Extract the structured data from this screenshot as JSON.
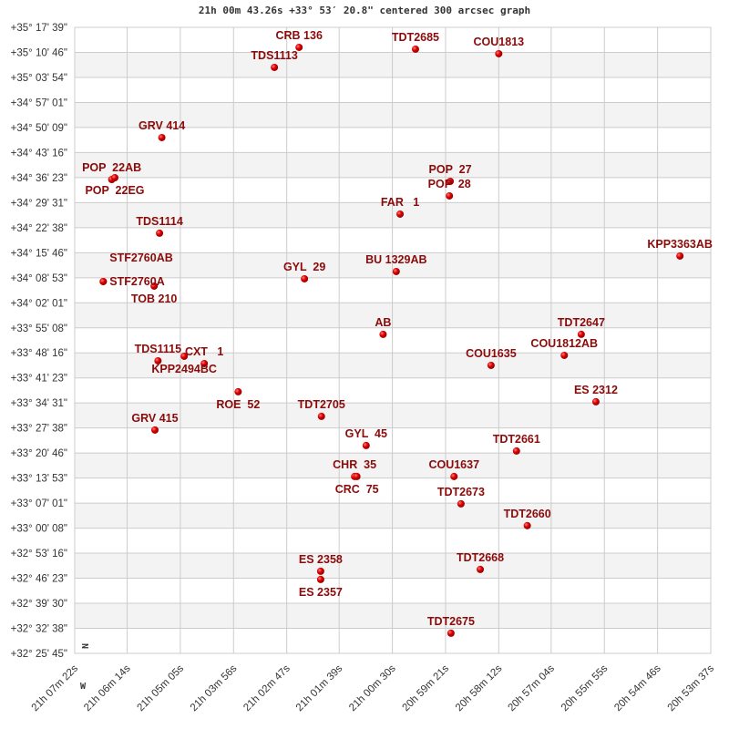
{
  "title": "21h 00m 43.26s +33° 53′ 20.8\" centered 300 arcsec graph",
  "chart_data": {
    "type": "scatter",
    "title": "21h 00m 43.26s +33° 53′ 20.8\" centered 300 arcsec graph",
    "xlabel": "",
    "ylabel": "",
    "xlim": [
      "21h 07m 22s",
      "20h 53m 37s"
    ],
    "ylim": [
      "+32° 25' 45\"",
      "+35° 17' 39\""
    ],
    "grid": true,
    "compass": {
      "north": "N",
      "west": "W"
    },
    "colors": {
      "point": "#d40000",
      "label": "#8b0a0a",
      "grid": "#cccccc",
      "band": "#f3f3f3"
    },
    "x_ticks": [
      "21h 07m 22s",
      "21h 06m 14s",
      "21h 05m 05s",
      "21h 03m 56s",
      "21h 02m 47s",
      "21h 01m 39s",
      "21h 00m 30s",
      "20h 59m 21s",
      "20h 58m 12s",
      "20h 57m 04s",
      "20h 55m 55s",
      "20h 54m 46s",
      "20h 53m 37s"
    ],
    "y_ticks": [
      "+35° 17' 39\"",
      "+35° 10' 46\"",
      "+35° 03' 54\"",
      "+34° 57' 01\"",
      "+34° 50' 09\"",
      "+34° 43' 16\"",
      "+34° 36' 23\"",
      "+34° 29' 31\"",
      "+34° 22' 38\"",
      "+34° 15' 46\"",
      "+34° 08' 53\"",
      "+34° 02' 01\"",
      "+33° 55' 08\"",
      "+33° 48' 16\"",
      "+33° 41' 23\"",
      "+33° 34' 31\"",
      "+33° 27' 38\"",
      "+33° 20' 46\"",
      "+33° 13' 53\"",
      "+33° 07' 01\"",
      "+33° 00' 08\"",
      "+32° 53' 16\"",
      "+32° 46' 23\"",
      "+32° 39' 30\"",
      "+32° 32' 38\"",
      "+32° 25' 45\""
    ],
    "points": [
      {
        "name": "CRB 136",
        "ra": "21h 02m 31s",
        "dec": "+35° 12' 09\""
      },
      {
        "name": "TDS1113",
        "ra": "21h 03m 03s",
        "dec": "+35° 06' 39\""
      },
      {
        "name": "TDT2685",
        "ra": "21h 00m 00s",
        "dec": "+35° 11' 39\""
      },
      {
        "name": "COU1813",
        "ra": "20h 58m 12s",
        "dec": "+35° 10' 24\""
      },
      {
        "name": "GRV 414",
        "ra": "21h 05m 29s",
        "dec": "+34° 47' 23\""
      },
      {
        "name": "POP  22AB",
        "ra": "21h 06m 34s",
        "dec": "+34° 35' 52\""
      },
      {
        "name": "POP  22EG",
        "ra": "21h 06m 30s",
        "dec": "+34° 36' 22\""
      },
      {
        "name": "POP  27",
        "ra": "20h 59m 15s",
        "dec": "+34° 35' 22\""
      },
      {
        "name": "POP  28",
        "ra": "20h 59m 16s",
        "dec": "+34° 31' 22\""
      },
      {
        "name": "FAR   1",
        "ra": "21h 00m 20s",
        "dec": "+34° 26' 22\""
      },
      {
        "name": "TDS1114",
        "ra": "21h 05m 32s",
        "dec": "+34° 21' 07\""
      },
      {
        "name": "KPP3363AB",
        "ra": "20h 54m 17s",
        "dec": "+34° 14' 51\""
      },
      {
        "name": "STF2760A",
        "ra": "21h 06m 45s",
        "dec": "+34° 07' 51\""
      },
      {
        "name": "STF2760AB",
        "ra": "21h 06m 45s",
        "dec": "+34° 07' 51\""
      },
      {
        "name": "TOB 210",
        "ra": "21h 05m 39s",
        "dec": "+34° 06' 36\""
      },
      {
        "name": "GYL  29",
        "ra": "21h 02m 24s",
        "dec": "+34° 08' 36\""
      },
      {
        "name": "BU 1329AB",
        "ra": "21h 00m 25s",
        "dec": "+34° 10' 36\""
      },
      {
        "name": "AB",
        "ra": "21h 00m 42s",
        "dec": "+33° 53' 21\""
      },
      {
        "name": "TDT2647",
        "ra": "20h 56m 25s",
        "dec": "+33° 53' 21\""
      },
      {
        "name": "COU1812AB",
        "ra": "20h 56m 47s",
        "dec": "+33° 47' 35\""
      },
      {
        "name": "COU1635",
        "ra": "20h 58m 22s",
        "dec": "+33° 44' 50\""
      },
      {
        "name": "TDS1115",
        "ra": "21h 05m 34s",
        "dec": "+33° 46' 05\""
      },
      {
        "name": "KPP2494BC",
        "ra": "21h 05m 00s",
        "dec": "+33° 47' 20\""
      },
      {
        "name": "CXT   1",
        "ra": "21h 04m 34s",
        "dec": "+33° 45' 20\""
      },
      {
        "name": "ROE  52",
        "ra": "21h 03m 50s",
        "dec": "+33° 37' 35\""
      },
      {
        "name": "ES 2312",
        "ra": "20h 56m 06s",
        "dec": "+33° 34' 50\""
      },
      {
        "name": "TDT2705",
        "ra": "21h 02m 02s",
        "dec": "+33° 30' 50\""
      },
      {
        "name": "GRV 415",
        "ra": "21h 05m 38s",
        "dec": "+33° 27' 05\""
      },
      {
        "name": "GYL  45",
        "ra": "21h 01m 04s",
        "dec": "+33° 22' 49\""
      },
      {
        "name": "TDT2661",
        "ra": "20h 57m 49s",
        "dec": "+33° 21' 19\""
      },
      {
        "name": "CHR  35",
        "ra": "21h 01m 19s",
        "dec": "+33° 14' 19\""
      },
      {
        "name": "CRC  75",
        "ra": "21h 01m 16s",
        "dec": "+33° 14' 19\""
      },
      {
        "name": "COU1637",
        "ra": "20h 59m 10s",
        "dec": "+33° 14' 19\""
      },
      {
        "name": "TDT2673",
        "ra": "20h 59m 01s",
        "dec": "+33° 06' 49\""
      },
      {
        "name": "TDT2660",
        "ra": "20h 57m 35s",
        "dec": "+33° 00' 49\""
      },
      {
        "name": "ES 2358",
        "ra": "21h 02m 03s",
        "dec": "+32° 48' 18\""
      },
      {
        "name": "ES 2357",
        "ra": "21h 02m 03s",
        "dec": "+32° 46' 03\""
      },
      {
        "name": "TDT2668",
        "ra": "20h 58m 36s",
        "dec": "+32° 48' 48\""
      },
      {
        "name": "TDT2675",
        "ra": "20h 59m 14s",
        "dec": "+32° 31' 17\""
      }
    ]
  }
}
